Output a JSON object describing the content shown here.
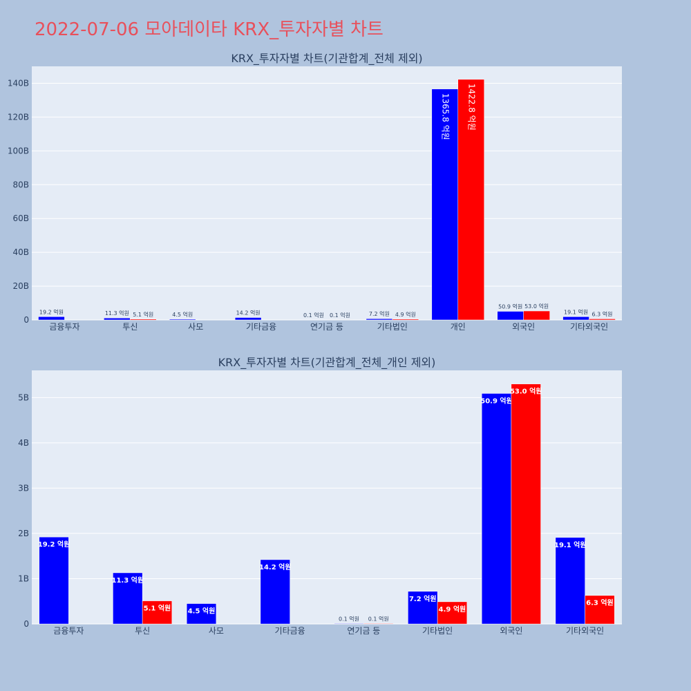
{
  "title": "2022-07-06 모아데이타 KRX_투자자별 차트",
  "colors": {
    "buy": "#0000ff",
    "sell": "#ff0000",
    "title": "#e8505b",
    "plot_bg": "#e5ecf6",
    "page_bg": "#b0c4de"
  },
  "chart_data": [
    {
      "type": "bar",
      "title": "KRX_투자자별 차트(기관합계_전체 제외)",
      "categories": [
        "금융투자",
        "투신",
        "사모",
        "기타금융",
        "연기금 등",
        "기타법인",
        "개인",
        "외국인",
        "기타외국인"
      ],
      "series": [
        {
          "values": [
            1920000000,
            1130000000,
            450000000,
            1420000000,
            10000000,
            720000000,
            136580000000,
            5090000000,
            1910000000
          ],
          "labels": [
            "19.2 억원",
            "11.3 억원",
            "4.5 억원",
            "14.2 억원",
            "0.1 억원",
            "7.2 억원",
            "1365.8 억원",
            "50.9 억원",
            "19.1 억원"
          ]
        },
        {
          "values": [
            0,
            510000000,
            0,
            0,
            10000000,
            490000000,
            142280000000,
            5300000000,
            630000000
          ],
          "labels": [
            "",
            "5.1 억원",
            "",
            "",
            "0.1 억원",
            "4.9 억원",
            "1422.8 억원",
            "53.0 억원",
            "6.3 억원"
          ]
        }
      ],
      "yticks": [
        0,
        20000000000,
        40000000000,
        60000000000,
        80000000000,
        100000000000,
        120000000000,
        140000000000
      ],
      "yticklabels": [
        "0",
        "20B",
        "40B",
        "60B",
        "80B",
        "100B",
        "120B",
        "140B"
      ],
      "ylim": [
        0,
        150000000000
      ],
      "grid": true
    },
    {
      "type": "bar",
      "title": "KRX_투자자별 차트(기관합계_전체_개인 제외)",
      "categories": [
        "금융투자",
        "투신",
        "사모",
        "기타금융",
        "연기금 등",
        "기타법인",
        "외국인",
        "기타외국인"
      ],
      "series": [
        {
          "values": [
            1920000000,
            1130000000,
            450000000,
            1420000000,
            10000000,
            720000000,
            5090000000,
            1910000000
          ],
          "labels": [
            "19.2 억원",
            "11.3 억원",
            "4.5 억원",
            "14.2 억원",
            "0.1 억원",
            "7.2 억원",
            "50.9 억원",
            "19.1 억원"
          ]
        },
        {
          "values": [
            0,
            510000000,
            0,
            0,
            10000000,
            490000000,
            5300000000,
            630000000
          ],
          "labels": [
            "",
            "5.1 억원",
            "",
            "",
            "0.1 억원",
            "4.9 억원",
            "53.0 억원",
            "6.3 억원"
          ]
        }
      ],
      "yticks": [
        0,
        1000000000,
        2000000000,
        3000000000,
        4000000000,
        5000000000
      ],
      "yticklabels": [
        "0",
        "1B",
        "2B",
        "3B",
        "4B",
        "5B"
      ],
      "ylim": [
        0,
        5600000000
      ],
      "grid": true
    }
  ]
}
